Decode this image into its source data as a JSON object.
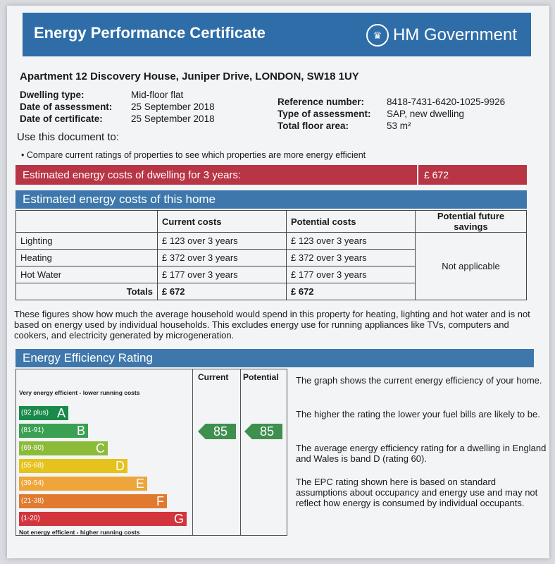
{
  "header": {
    "title": "Energy Performance Certificate",
    "government": "HM Government",
    "crest_icon": "royal-crest-icon"
  },
  "address": "Apartment 12 Discovery House, Juniper Drive, LONDON, SW18 1UY",
  "details_left": [
    {
      "label": "Dwelling type:",
      "value": "Mid-floor flat"
    },
    {
      "label": "Date of assessment:",
      "value": "25 September 2018"
    },
    {
      "label": "Date of certificate:",
      "value": "25 September 2018"
    }
  ],
  "details_right": [
    {
      "label": "Reference number:",
      "value": "8418-7431-6420-1025-9926"
    },
    {
      "label": "Type of assessment:",
      "value": "SAP, new dwelling"
    },
    {
      "label": "Total floor area:",
      "value": "53 m²"
    }
  ],
  "use": {
    "title": "Use this document to:",
    "item": "Compare current ratings of properties to see which properties are more energy efficient"
  },
  "cost3": {
    "label": "Estimated energy costs of dwelling for 3 years:",
    "value": "£ 672"
  },
  "costs": {
    "title": "Estimated energy costs of this home",
    "headers": [
      "",
      "Current costs",
      "Potential costs",
      "Potential future savings"
    ],
    "rows": [
      {
        "name": "Lighting",
        "current": "£ 123 over 3 years",
        "potential": "£ 123 over 3 years"
      },
      {
        "name": "Heating",
        "current": "£ 372 over 3 years",
        "potential": "£ 372 over 3 years"
      },
      {
        "name": "Hot Water",
        "current": "£ 177 over 3 years",
        "potential": "£ 177 over 3 years"
      }
    ],
    "savings": "Not applicable",
    "totals_label": "Totals",
    "totals_current": "£ 672",
    "totals_potential": "£ 672"
  },
  "note": "These figures show how much the average household would spend in this property for heating, lighting and hot water and is not based on energy used by individual households. This excludes energy use for running appliances like TVs, computers and cookers, and electricity generated by microgeneration.",
  "rating": {
    "title": "Energy Efficiency Rating",
    "top_label": "Very energy efficient - lower running costs",
    "bottom_label": "Not energy efficient - higher running costs",
    "col_current": "Current",
    "col_potential": "Potential",
    "bands": [
      {
        "range": "(92 plus)",
        "letter": "A",
        "color": "#1a8a4a"
      },
      {
        "range": "(81-91)",
        "letter": "B",
        "color": "#3aa052"
      },
      {
        "range": "(69-80)",
        "letter": "C",
        "color": "#8cbb3a"
      },
      {
        "range": "(55-68)",
        "letter": "D",
        "color": "#e6c21c"
      },
      {
        "range": "(39-54)",
        "letter": "E",
        "color": "#eea53a"
      },
      {
        "range": "(21-38)",
        "letter": "F",
        "color": "#e07a2f"
      },
      {
        "range": "(1-20)",
        "letter": "G",
        "color": "#d2353c"
      }
    ],
    "current": "85",
    "potential": "85"
  },
  "explain": [
    "The graph shows the current energy efficiency of your home.",
    "The higher the rating the lower your fuel bills are likely to be.",
    "The average energy efficiency rating for a dwelling in England and Wales is band D (rating 60).",
    "The EPC rating shown here is based on standard assumptions about occupancy and energy use and may not reflect how energy is consumed by individual occupants."
  ]
}
